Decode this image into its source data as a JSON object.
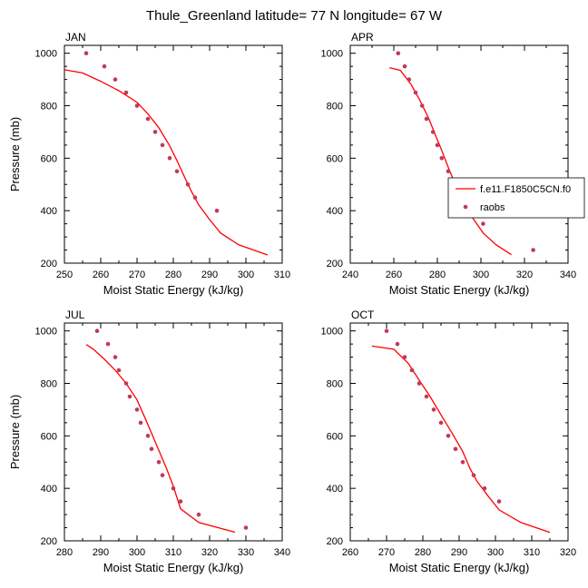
{
  "title": "Thule_Greenland  latitude= 77 N longitude= 67 W",
  "colors": {
    "model": "#ff0000",
    "obs": "#c0395f",
    "axis": "#000000"
  },
  "legend": {
    "items": [
      {
        "label": "f.e11.F1850C5CN.f0",
        "type": "line",
        "color": "#ff0000"
      },
      {
        "label": "raobs",
        "type": "marker",
        "color": "#c0395f"
      }
    ],
    "placement": "right of APR panel"
  },
  "chart_data": [
    {
      "type": "line",
      "panel": "JAN",
      "xlabel": "Moist Static Energy (kJ/kg)",
      "ylabel": "Pressure (mb)",
      "xlim": [
        250,
        310
      ],
      "ylim": [
        1030,
        200
      ],
      "xticks": [
        250,
        260,
        270,
        280,
        290,
        300,
        310
      ],
      "yticks": [
        200,
        400,
        600,
        800,
        1000
      ],
      "grid": false,
      "series": [
        {
          "name": "f.e11.F1850C5CN.f0",
          "kind": "line",
          "points": [
            [
              250,
              937
            ],
            [
              255,
              925
            ],
            [
              260,
              893
            ],
            [
              265,
              857
            ],
            [
              270,
              813
            ],
            [
              273,
              769
            ],
            [
              276,
              716
            ],
            [
              279,
              647
            ],
            [
              281,
              591
            ],
            [
              283,
              531
            ],
            [
              285,
              473
            ],
            [
              287,
              422
            ],
            [
              290,
              366
            ],
            [
              293,
              315
            ],
            [
              298,
              270
            ],
            [
              306,
              231
            ]
          ]
        },
        {
          "name": "raobs",
          "kind": "scatter",
          "points": [
            [
              256,
              1000
            ],
            [
              261,
              950
            ],
            [
              264,
              900
            ],
            [
              267,
              850
            ],
            [
              270,
              800
            ],
            [
              273,
              750
            ],
            [
              275,
              700
            ],
            [
              277,
              650
            ],
            [
              279,
              600
            ],
            [
              281,
              550
            ],
            [
              284,
              500
            ],
            [
              286,
              450
            ],
            [
              292,
              400
            ]
          ]
        }
      ]
    },
    {
      "type": "line",
      "panel": "APR",
      "xlabel": "Moist Static Energy (kJ/kg)",
      "ylabel": "",
      "xlim": [
        240,
        340
      ],
      "ylim": [
        1030,
        200
      ],
      "xticks": [
        240,
        260,
        280,
        300,
        320,
        340
      ],
      "yticks": [
        200,
        400,
        600,
        800,
        1000
      ],
      "grid": false,
      "series": [
        {
          "name": "f.e11.F1850C5CN.f0",
          "kind": "line",
          "points": [
            [
              258,
              945
            ],
            [
              263,
              935
            ],
            [
              268,
              880
            ],
            [
              272,
              820
            ],
            [
              276,
              752
            ],
            [
              279,
              690
            ],
            [
              282,
              630
            ],
            [
              285,
              565
            ],
            [
              288,
              505
            ],
            [
              292,
              440
            ],
            [
              296,
              375
            ],
            [
              301,
              315
            ],
            [
              307,
              270
            ],
            [
              314,
              232
            ]
          ]
        },
        {
          "name": "raobs",
          "kind": "scatter",
          "points": [
            [
              262,
              1000
            ],
            [
              265,
              950
            ],
            [
              267,
              900
            ],
            [
              270,
              850
            ],
            [
              273,
              800
            ],
            [
              275,
              750
            ],
            [
              278,
              700
            ],
            [
              280,
              650
            ],
            [
              282,
              600
            ],
            [
              285,
              550
            ],
            [
              288,
              500
            ],
            [
              290,
              450
            ],
            [
              296,
              400
            ],
            [
              301,
              350
            ],
            [
              324,
              250
            ]
          ]
        }
      ]
    },
    {
      "type": "line",
      "panel": "JUL",
      "xlabel": "Moist Static Energy (kJ/kg)",
      "ylabel": "Pressure (mb)",
      "xlim": [
        280,
        340
      ],
      "ylim": [
        1030,
        200
      ],
      "xticks": [
        280,
        290,
        300,
        310,
        320,
        330,
        340
      ],
      "yticks": [
        200,
        400,
        600,
        800,
        1000
      ],
      "grid": false,
      "series": [
        {
          "name": "f.e11.F1850C5CN.f0",
          "kind": "line",
          "points": [
            [
              286,
              948
            ],
            [
              288,
              930
            ],
            [
              291,
              892
            ],
            [
              294,
              850
            ],
            [
              297,
              800
            ],
            [
              300,
              737
            ],
            [
              302,
              675
            ],
            [
              304,
              610
            ],
            [
              306,
              545
            ],
            [
              308,
              480
            ],
            [
              310,
              408
            ],
            [
              312,
              322
            ],
            [
              317,
              270
            ],
            [
              327,
              233
            ]
          ]
        },
        {
          "name": "raobs",
          "kind": "scatter",
          "points": [
            [
              289,
              1000
            ],
            [
              292,
              950
            ],
            [
              294,
              900
            ],
            [
              295,
              850
            ],
            [
              297,
              800
            ],
            [
              298,
              750
            ],
            [
              300,
              700
            ],
            [
              301,
              650
            ],
            [
              303,
              600
            ],
            [
              304,
              550
            ],
            [
              306,
              500
            ],
            [
              307,
              450
            ],
            [
              310,
              400
            ],
            [
              312,
              350
            ],
            [
              317,
              300
            ],
            [
              330,
              250
            ]
          ]
        }
      ]
    },
    {
      "type": "line",
      "panel": "OCT",
      "xlabel": "Moist Static Energy (kJ/kg)",
      "ylabel": "",
      "xlim": [
        260,
        320
      ],
      "ylim": [
        1030,
        200
      ],
      "xticks": [
        260,
        270,
        280,
        290,
        300,
        310,
        320
      ],
      "yticks": [
        200,
        400,
        600,
        800,
        1000
      ],
      "grid": false,
      "series": [
        {
          "name": "f.e11.F1850C5CN.f0",
          "kind": "line",
          "points": [
            [
              266,
              942
            ],
            [
              272,
              930
            ],
            [
              276,
              876
            ],
            [
              279,
              812
            ],
            [
              282,
              750
            ],
            [
              285,
              680
            ],
            [
              288,
              612
            ],
            [
              291,
              540
            ],
            [
              293,
              475
            ],
            [
              295,
              425
            ],
            [
              298,
              370
            ],
            [
              301,
              318
            ],
            [
              307,
              270
            ],
            [
              315,
              232
            ]
          ]
        },
        {
          "name": "raobs",
          "kind": "scatter",
          "points": [
            [
              270,
              1000
            ],
            [
              273,
              950
            ],
            [
              275,
              900
            ],
            [
              277,
              850
            ],
            [
              279,
              800
            ],
            [
              281,
              750
            ],
            [
              283,
              700
            ],
            [
              285,
              650
            ],
            [
              287,
              600
            ],
            [
              289,
              550
            ],
            [
              291,
              500
            ],
            [
              294,
              450
            ],
            [
              297,
              400
            ],
            [
              301,
              350
            ]
          ]
        }
      ]
    }
  ]
}
